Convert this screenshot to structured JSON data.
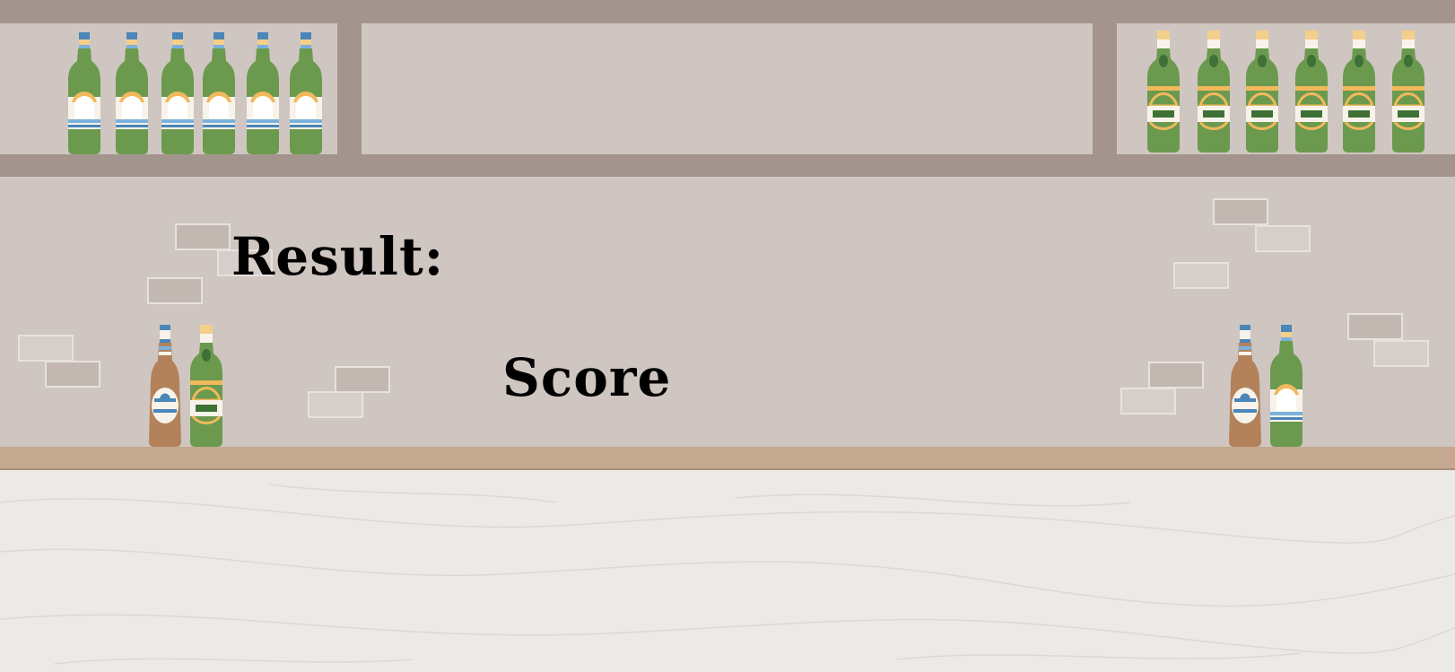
{
  "result_label": "Result:",
  "score_label": "Score",
  "colors": {
    "wall": "#cfc6c1",
    "shelf": "#a3958e",
    "counter_top": "#c4a88f",
    "floor": "#eceae6",
    "green_bottle": "#6b9a4e",
    "brown_bottle": "#b3825a",
    "label_blue": "#7ab1dc",
    "label_gold": "#f1b95c"
  },
  "decorations": {
    "shelf_bottles_left": 6,
    "shelf_bottles_right": 6,
    "counter_bottles_left": [
      "brown",
      "green"
    ],
    "counter_bottles_right": [
      "brown",
      "green"
    ]
  }
}
